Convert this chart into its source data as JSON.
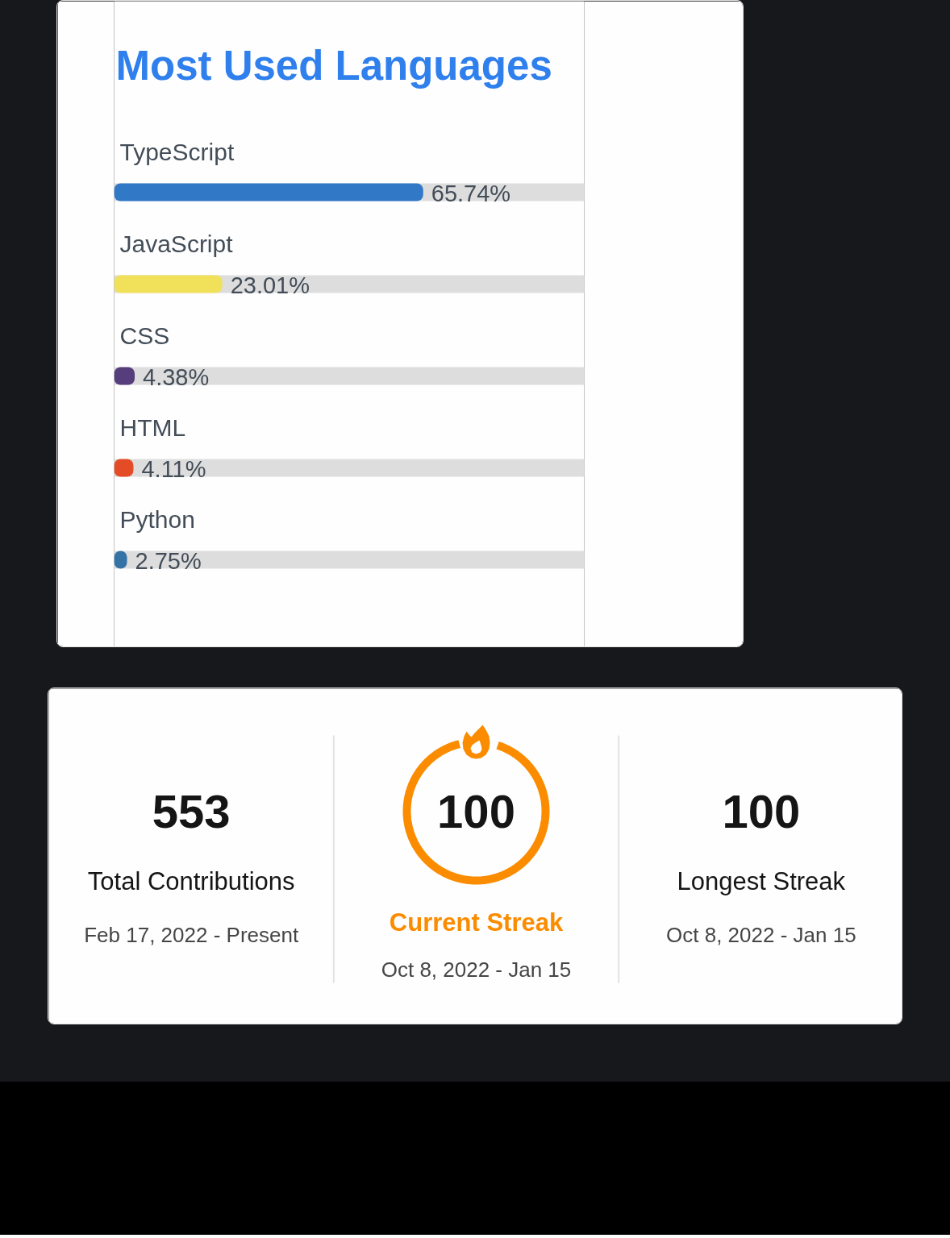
{
  "chart_data": [
    {
      "type": "bar",
      "orientation": "horizontal",
      "title": "Most Used Languages",
      "categories": [
        "TypeScript",
        "JavaScript",
        "CSS",
        "HTML",
        "Python"
      ],
      "values": [
        65.74,
        23.01,
        4.38,
        4.11,
        2.75
      ],
      "colors": [
        "#3178c6",
        "#f1e05a",
        "#563d7c",
        "#e34c26",
        "#3572a5"
      ],
      "value_labels": [
        "65.74%",
        "23.01%",
        "4.38%",
        "4.11%",
        "2.75%"
      ],
      "xlim": [
        0,
        100
      ],
      "tick_labels": "y",
      "grid": "y"
    },
    {
      "type": "other",
      "categories": [
        "Total Contributions",
        "Current Streak",
        "Longest Streak"
      ],
      "values": [
        553,
        100,
        100
      ],
      "data_labels": true,
      "annotations": [
        "Feb 17, 2022 - Present",
        "Oct 8, 2022 - Jan 15",
        "Oct 8, 2022 - Jan 15"
      ]
    }
  ]
}
